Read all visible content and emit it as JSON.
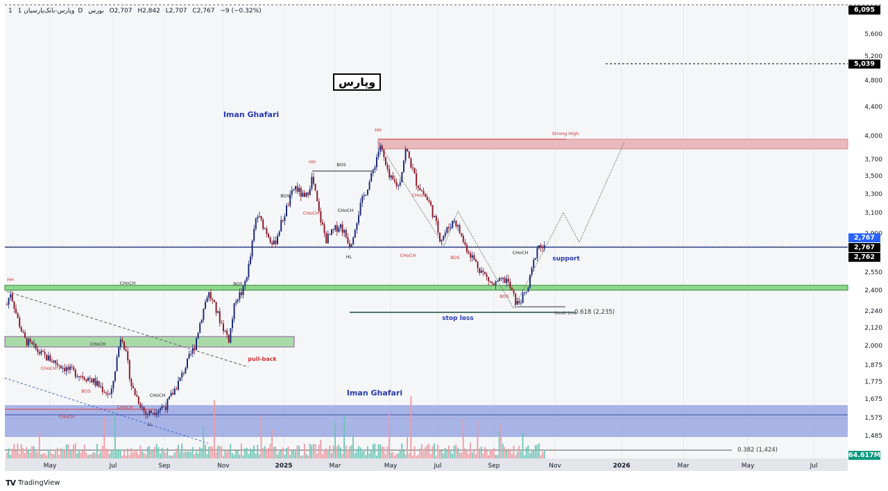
{
  "header": {
    "symbol": "وپارس-بانک‌پارسیان",
    "interval": "1D",
    "exchange": "بورس",
    "open": "O2,707",
    "high": "H2,842",
    "low": "L2,707",
    "close": "C2,767",
    "change": "−9 (−0.32%)",
    "pane": "1"
  },
  "logo_text": "وپارس",
  "author_top": "Iman Ghafari",
  "author_bottom": "Iman Ghafari",
  "price_axis": [
    "5,600",
    "5,200",
    "4,800",
    "4,400",
    "4,000",
    "3,700",
    "3,500",
    "3,300",
    "3,100",
    "2,900",
    "2,550",
    "2,400",
    "2,240",
    "2,120",
    "2,000",
    "1,875",
    "1,775",
    "1,675",
    "1,575",
    "1,485"
  ],
  "price_tags": {
    "top": "6,095",
    "target": "5,039",
    "last_blue": "2,767",
    "last": "2,767",
    "support_level": "2,762",
    "volume": "64.617M"
  },
  "time_axis": [
    "May",
    "Jul",
    "Sep",
    "Nov",
    "2025",
    "Mar",
    "May",
    "Jul",
    "Sep",
    "Nov",
    "2026",
    "Mar",
    "May",
    "Jul"
  ],
  "annotations": {
    "hh1": "HH",
    "hh2": "HH",
    "hh3": "HH",
    "hl": "HL",
    "ll": "LL",
    "bos1": "BOS",
    "bos2": "BOS",
    "bos3": "BOS",
    "bos4": "BOS",
    "bos5": "BOS",
    "bos6": "BOS",
    "choch1": "CHoCH",
    "choch2": "CHoCH",
    "choch3": "CHoCH",
    "choch4": "CHoCH",
    "choch5": "CHoCH",
    "choch6": "CHoCH",
    "choch7": "CHoCH",
    "choch8": "CHoCH",
    "choch9": "CHoCH",
    "choch10": "CHoCH",
    "choch11": "CHoCH",
    "strong_high": "Strong High",
    "weak_low": "Weak Low",
    "support": "support",
    "stop_loss": "stop loss",
    "pull_back": "pull-back",
    "fib618": "0.618 (2,235)",
    "fib382": "0.382 (1,424)"
  },
  "branding": "TradingView",
  "colors": {
    "up": "#089981",
    "down": "#b22833",
    "candle_up": "#1e2a78",
    "candle_down": "#8b1a2b",
    "accent": "#2962ff"
  }
}
